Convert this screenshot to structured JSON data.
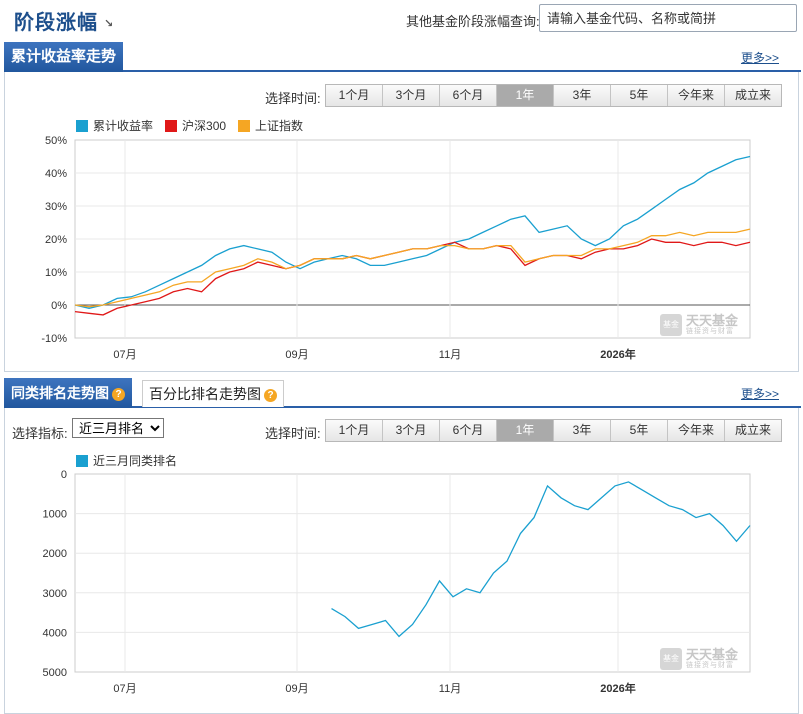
{
  "header": {
    "title": "阶段涨幅",
    "title_arrow": "↘",
    "search_label": "其他基金阶段涨幅查询:",
    "search_placeholder": "请输入基金代码、名称或简拼"
  },
  "section1": {
    "tab": "累计收益率走势",
    "more": "更多>>",
    "time_label": "选择时间:",
    "ranges": [
      "1个月",
      "3个月",
      "6个月",
      "1年",
      "3年",
      "5年",
      "今年来",
      "成立来"
    ],
    "active_range": "1年",
    "legend": [
      {
        "name": "累计收益率",
        "color": "#1aa0d0"
      },
      {
        "name": "沪深300",
        "color": "#e01818"
      },
      {
        "name": "上证指数",
        "color": "#f5a623"
      }
    ]
  },
  "section2": {
    "tab": "同类排名走势图",
    "tab2": "百分比排名走势图",
    "more": "更多>>",
    "indicator_label": "选择指标:",
    "indicator_value": "近三月排名",
    "time_label": "选择时间:",
    "ranges": [
      "1个月",
      "3个月",
      "6个月",
      "1年",
      "3年",
      "5年",
      "今年来",
      "成立来"
    ],
    "active_range": "1年",
    "legend": [
      {
        "name": "近三月同类排名",
        "color": "#1aa0d0"
      }
    ]
  },
  "watermark": {
    "logo": "基金",
    "name": "天天基金",
    "sub": "链接资与财富"
  },
  "chart_data": [
    {
      "type": "line",
      "x_labels": [
        "07月",
        "09月",
        "11月",
        "2026年"
      ],
      "y_ticks": [
        "50%",
        "40%",
        "30%",
        "20%",
        "10%",
        "0%",
        "-10%"
      ],
      "ylim": [
        -10,
        50
      ],
      "grid": true,
      "legend_position": "top-left",
      "series": [
        {
          "name": "累计收益率",
          "color": "#1aa0d0",
          "values": [
            0,
            -1,
            0,
            2,
            2.5,
            4,
            6,
            8,
            10,
            12,
            15,
            17,
            18,
            17,
            16,
            13,
            11,
            13,
            14,
            15,
            14,
            12,
            12,
            13,
            14,
            15,
            17,
            19,
            20,
            22,
            24,
            26,
            27,
            22,
            23,
            24,
            20,
            18,
            20,
            24,
            26,
            29,
            32,
            35,
            37,
            40,
            42,
            44,
            45
          ]
        },
        {
          "name": "沪深300",
          "color": "#e01818",
          "values": [
            -2,
            -2.5,
            -3,
            -1,
            0,
            1,
            2,
            4,
            5,
            4,
            8,
            10,
            11,
            13,
            12,
            11,
            12,
            14,
            14,
            14,
            15,
            14,
            15,
            16,
            17,
            17,
            18,
            19,
            17,
            17,
            18,
            17,
            12,
            14,
            15,
            15,
            14,
            16,
            17,
            17,
            18,
            20,
            19,
            19,
            18,
            19,
            19,
            18,
            19
          ]
        },
        {
          "name": "上证指数",
          "color": "#f5a623",
          "values": [
            0,
            -0.5,
            0,
            1,
            2,
            3,
            4,
            6,
            7,
            7,
            10,
            11,
            12,
            14,
            13,
            11,
            12,
            14,
            14,
            14,
            15,
            14,
            15,
            16,
            17,
            17,
            18,
            18,
            17,
            17,
            18,
            18,
            13,
            14,
            15,
            15,
            15,
            17,
            17,
            18,
            19,
            21,
            21,
            22,
            21,
            22,
            22,
            22,
            23
          ]
        }
      ]
    },
    {
      "type": "line",
      "x_labels": [
        "07月",
        "09月",
        "11月",
        "2026年"
      ],
      "y_ticks": [
        "0",
        "1000",
        "2000",
        "3000",
        "4000",
        "5000"
      ],
      "ylim": [
        5000,
        0
      ],
      "grid": true,
      "legend_position": "top-left",
      "series": [
        {
          "name": "近三月同类排名",
          "color": "#1aa0d0",
          "values": [
            3400,
            3600,
            3900,
            3800,
            3700,
            4100,
            3800,
            3300,
            2700,
            3100,
            2900,
            3000,
            2500,
            2200,
            1500,
            1100,
            300,
            600,
            800,
            900,
            600,
            300,
            200,
            400,
            600,
            800,
            900,
            1100,
            1000,
            1300,
            1700,
            1300
          ]
        }
      ]
    }
  ]
}
